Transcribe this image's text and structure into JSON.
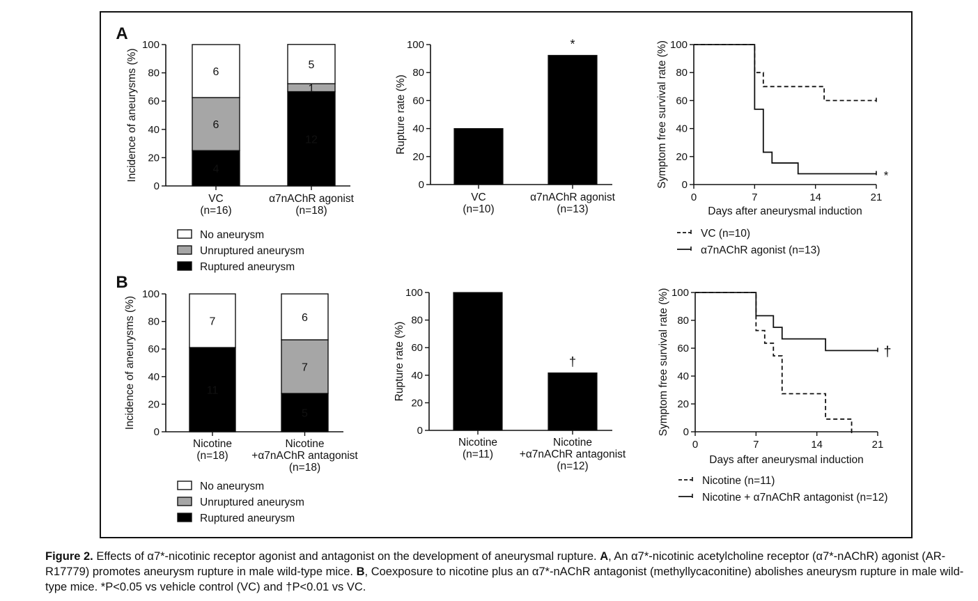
{
  "panel_labels": {
    "A": "A",
    "B": "B"
  },
  "caption": {
    "figure_label": "Figure 2.",
    "text": " Effects of α7*-nicotinic receptor agonist and antagonist on the development of aneurysmal rupture. ",
    "a_label": "A",
    "a_text": ", An α7*-nicotinic acetylcholine receptor (α7*-nAChR) agonist (AR-R17779) promotes aneurysm rupture in male wild-type mice. ",
    "b_label": "B",
    "b_text": ", Coexposure to nicotine plus an α7*-nAChR antagonist (methyllycaconitine) abolishes aneurysm rupture in male wild-type mice. *P<0.05 vs vehicle control (VC) and †P<0.01 vs VC."
  },
  "colors": {
    "no_aneurysm": "#ffffff",
    "unruptured": "#a6a6a6",
    "ruptured": "#000000",
    "stroke": "#111111"
  },
  "chart_data": [
    {
      "id": "A1",
      "type": "bar",
      "stacked": true,
      "ylabel": "Incidence of aneurysms (%)",
      "ylim": [
        0,
        100
      ],
      "yticks": [
        0,
        20,
        40,
        60,
        80,
        100
      ],
      "categories": [
        [
          "VC",
          "(n=16)"
        ],
        [
          "α7nAChR agonist",
          "(n=18)"
        ]
      ],
      "stacks": [
        [
          {
            "key": "ruptured",
            "pct": 25,
            "label": "4"
          },
          {
            "key": "unruptured",
            "pct": 37.5,
            "label": "6"
          },
          {
            "key": "no_aneurysm",
            "pct": 37.5,
            "label": "6"
          }
        ],
        [
          {
            "key": "ruptured",
            "pct": 66.7,
            "label": "12"
          },
          {
            "key": "unruptured",
            "pct": 5.6,
            "label": "1"
          },
          {
            "key": "no_aneurysm",
            "pct": 27.8,
            "label": "5"
          }
        ]
      ],
      "legend": [
        {
          "key": "no_aneurysm",
          "label": "No aneurysm"
        },
        {
          "key": "unruptured",
          "label": "Unruptured aneurysm"
        },
        {
          "key": "ruptured",
          "label": "Ruptured aneurysm"
        }
      ]
    },
    {
      "id": "A2",
      "type": "bar",
      "ylabel": "Rupture rate (%)",
      "ylim": [
        0,
        100
      ],
      "yticks": [
        0,
        20,
        40,
        60,
        80,
        100
      ],
      "categories": [
        [
          "VC",
          "(n=10)"
        ],
        [
          "α7nAChR agonist",
          "(n=13)"
        ]
      ],
      "values": [
        40,
        92.3
      ],
      "annotations": [
        "",
        "*"
      ]
    },
    {
      "id": "A3",
      "type": "line",
      "step": true,
      "ylabel": "Symptom free survival rate (%)",
      "xlabel": "Days after aneurysmal induction",
      "xlim": [
        0,
        21
      ],
      "ylim": [
        0,
        100
      ],
      "xticks": [
        0,
        7,
        14,
        21
      ],
      "yticks": [
        0,
        20,
        40,
        60,
        80,
        100
      ],
      "series": [
        {
          "name": "VC (n=10)",
          "dash": true,
          "x": [
            0,
            7,
            8,
            15,
            21
          ],
          "y": [
            100,
            80,
            70,
            60,
            60
          ],
          "annotation": ""
        },
        {
          "name": "α7nAChR agonist (n=13)",
          "dash": false,
          "x": [
            0,
            7,
            8,
            9,
            12,
            21
          ],
          "y": [
            100,
            53.8,
            23.1,
            15.4,
            7.7,
            7.7
          ],
          "annotation": "*"
        }
      ]
    },
    {
      "id": "B1",
      "type": "bar",
      "stacked": true,
      "ylabel": "Incidence of aneurysms (%)",
      "ylim": [
        0,
        100
      ],
      "yticks": [
        0,
        20,
        40,
        60,
        80,
        100
      ],
      "categories": [
        [
          "Nicotine",
          "(n=18)"
        ],
        [
          "Nicotine",
          "+α7nAChR antagonist",
          "(n=18)"
        ]
      ],
      "stacks": [
        [
          {
            "key": "ruptured",
            "pct": 61.1,
            "label": "11"
          },
          {
            "key": "no_aneurysm",
            "pct": 38.9,
            "label": "7"
          }
        ],
        [
          {
            "key": "ruptured",
            "pct": 27.8,
            "label": "5"
          },
          {
            "key": "unruptured",
            "pct": 38.9,
            "label": "7"
          },
          {
            "key": "no_aneurysm",
            "pct": 33.3,
            "label": "6"
          }
        ]
      ],
      "legend": [
        {
          "key": "no_aneurysm",
          "label": "No aneurysm"
        },
        {
          "key": "unruptured",
          "label": "Unruptured aneurysm"
        },
        {
          "key": "ruptured",
          "label": "Ruptured aneurysm"
        }
      ]
    },
    {
      "id": "B2",
      "type": "bar",
      "ylabel": "Rupture rate (%)",
      "ylim": [
        0,
        100
      ],
      "yticks": [
        0,
        20,
        40,
        60,
        80,
        100
      ],
      "categories": [
        [
          "Nicotine",
          "(n=11)"
        ],
        [
          "Nicotine",
          "+α7nAChR antagonist",
          "(n=12)"
        ]
      ],
      "values": [
        100,
        41.7
      ],
      "annotations": [
        "",
        "†"
      ]
    },
    {
      "id": "B3",
      "type": "line",
      "step": true,
      "ylabel": "Symptom free survival rate (%)",
      "xlabel": "Days after aneurysmal induction",
      "xlim": [
        0,
        21
      ],
      "ylim": [
        0,
        100
      ],
      "xticks": [
        0,
        7,
        14,
        21
      ],
      "yticks": [
        0,
        20,
        40,
        60,
        80,
        100
      ],
      "series": [
        {
          "name": "Nicotine (n=11)",
          "dash": true,
          "x": [
            0,
            7,
            8,
            9,
            10,
            15,
            18
          ],
          "y": [
            100,
            72.7,
            63.6,
            54.5,
            27.3,
            9.1,
            0
          ],
          "annotation": ""
        },
        {
          "name": "Nicotine + α7nAChR antagonist (n=12)",
          "dash": false,
          "x": [
            0,
            7,
            9,
            10,
            15,
            21
          ],
          "y": [
            100,
            83.3,
            75,
            66.7,
            58.3,
            58.3
          ],
          "annotation": "†"
        }
      ]
    }
  ]
}
